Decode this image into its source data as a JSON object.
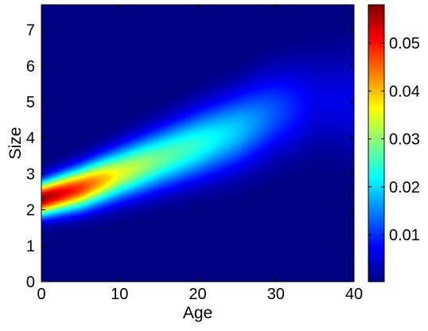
{
  "chart_data": {
    "type": "heatmap",
    "xlabel": "Age",
    "ylabel": "Size",
    "xlim": [
      0,
      40
    ],
    "ylim": [
      0,
      7.7
    ],
    "xticks": [
      0,
      10,
      20,
      30,
      40
    ],
    "yticks": [
      0,
      1,
      2,
      3,
      4,
      5,
      6,
      7
    ],
    "colormap": "jet",
    "colorbar": {
      "range": [
        0.0002,
        0.058
      ],
      "ticks": [
        0.01,
        0.02,
        0.03,
        0.04,
        0.05
      ],
      "tick_labels": [
        "0.01",
        "0.02",
        "0.03",
        "0.04",
        "0.05"
      ]
    },
    "density_ridge": {
      "age": [
        0,
        5,
        10,
        15,
        20,
        25,
        30,
        35
      ],
      "mean_size": [
        2.3,
        2.6,
        3.0,
        3.4,
        3.8,
        4.2,
        4.7,
        5.0
      ],
      "peak_density": [
        0.057,
        0.048,
        0.035,
        0.028,
        0.024,
        0.019,
        0.012,
        0.006
      ]
    },
    "grid": false,
    "legend": "none"
  }
}
